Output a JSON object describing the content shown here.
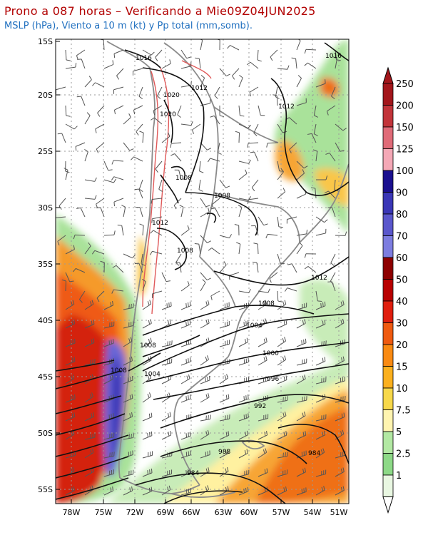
{
  "title": "Prono a 087 horas – Verificando a Mie09Z04JUN2025",
  "subtitle": "MSLP (hPa), Viento a 10 m (kt) y Pp total (mm,somb).",
  "lat_labels": [
    "15S",
    "20S",
    "25S",
    "30S",
    "35S",
    "40S",
    "45S",
    "50S",
    "55S"
  ],
  "lon_labels": [
    "78W",
    "75W",
    "72W",
    "69W",
    "66W",
    "63W",
    "60W",
    "57W",
    "54W",
    "51W"
  ],
  "isobar_labels": [
    "1016",
    "1016",
    "1012",
    "1012",
    "1020",
    "1020",
    "1008",
    "1008",
    "1012",
    "1008",
    "1012",
    "1008",
    "1008",
    "1004",
    "1000",
    "1008",
    "1012",
    "1004",
    "996",
    "992",
    "988",
    "984",
    "984"
  ],
  "colorbar": {
    "labels": [
      "250",
      "200",
      "150",
      "125",
      "100",
      "90",
      "80",
      "70",
      "60",
      "50",
      "40",
      "30",
      "20",
      "15",
      "10",
      "7.5",
      "5",
      "2.5",
      "1"
    ],
    "colors": [
      "#a3161b",
      "#c2343a",
      "#e06b78",
      "#f4a8b6",
      "#1a0f8f",
      "#3a36b6",
      "#5a57cc",
      "#7d7de0",
      "#8e0000",
      "#b80000",
      "#e01e0e",
      "#ef5a10",
      "#f98a12",
      "#fbb01e",
      "#f7d84a",
      "#fff4b0",
      "#b2e8a3",
      "#8dd987",
      "#e9f7e2"
    ]
  }
}
